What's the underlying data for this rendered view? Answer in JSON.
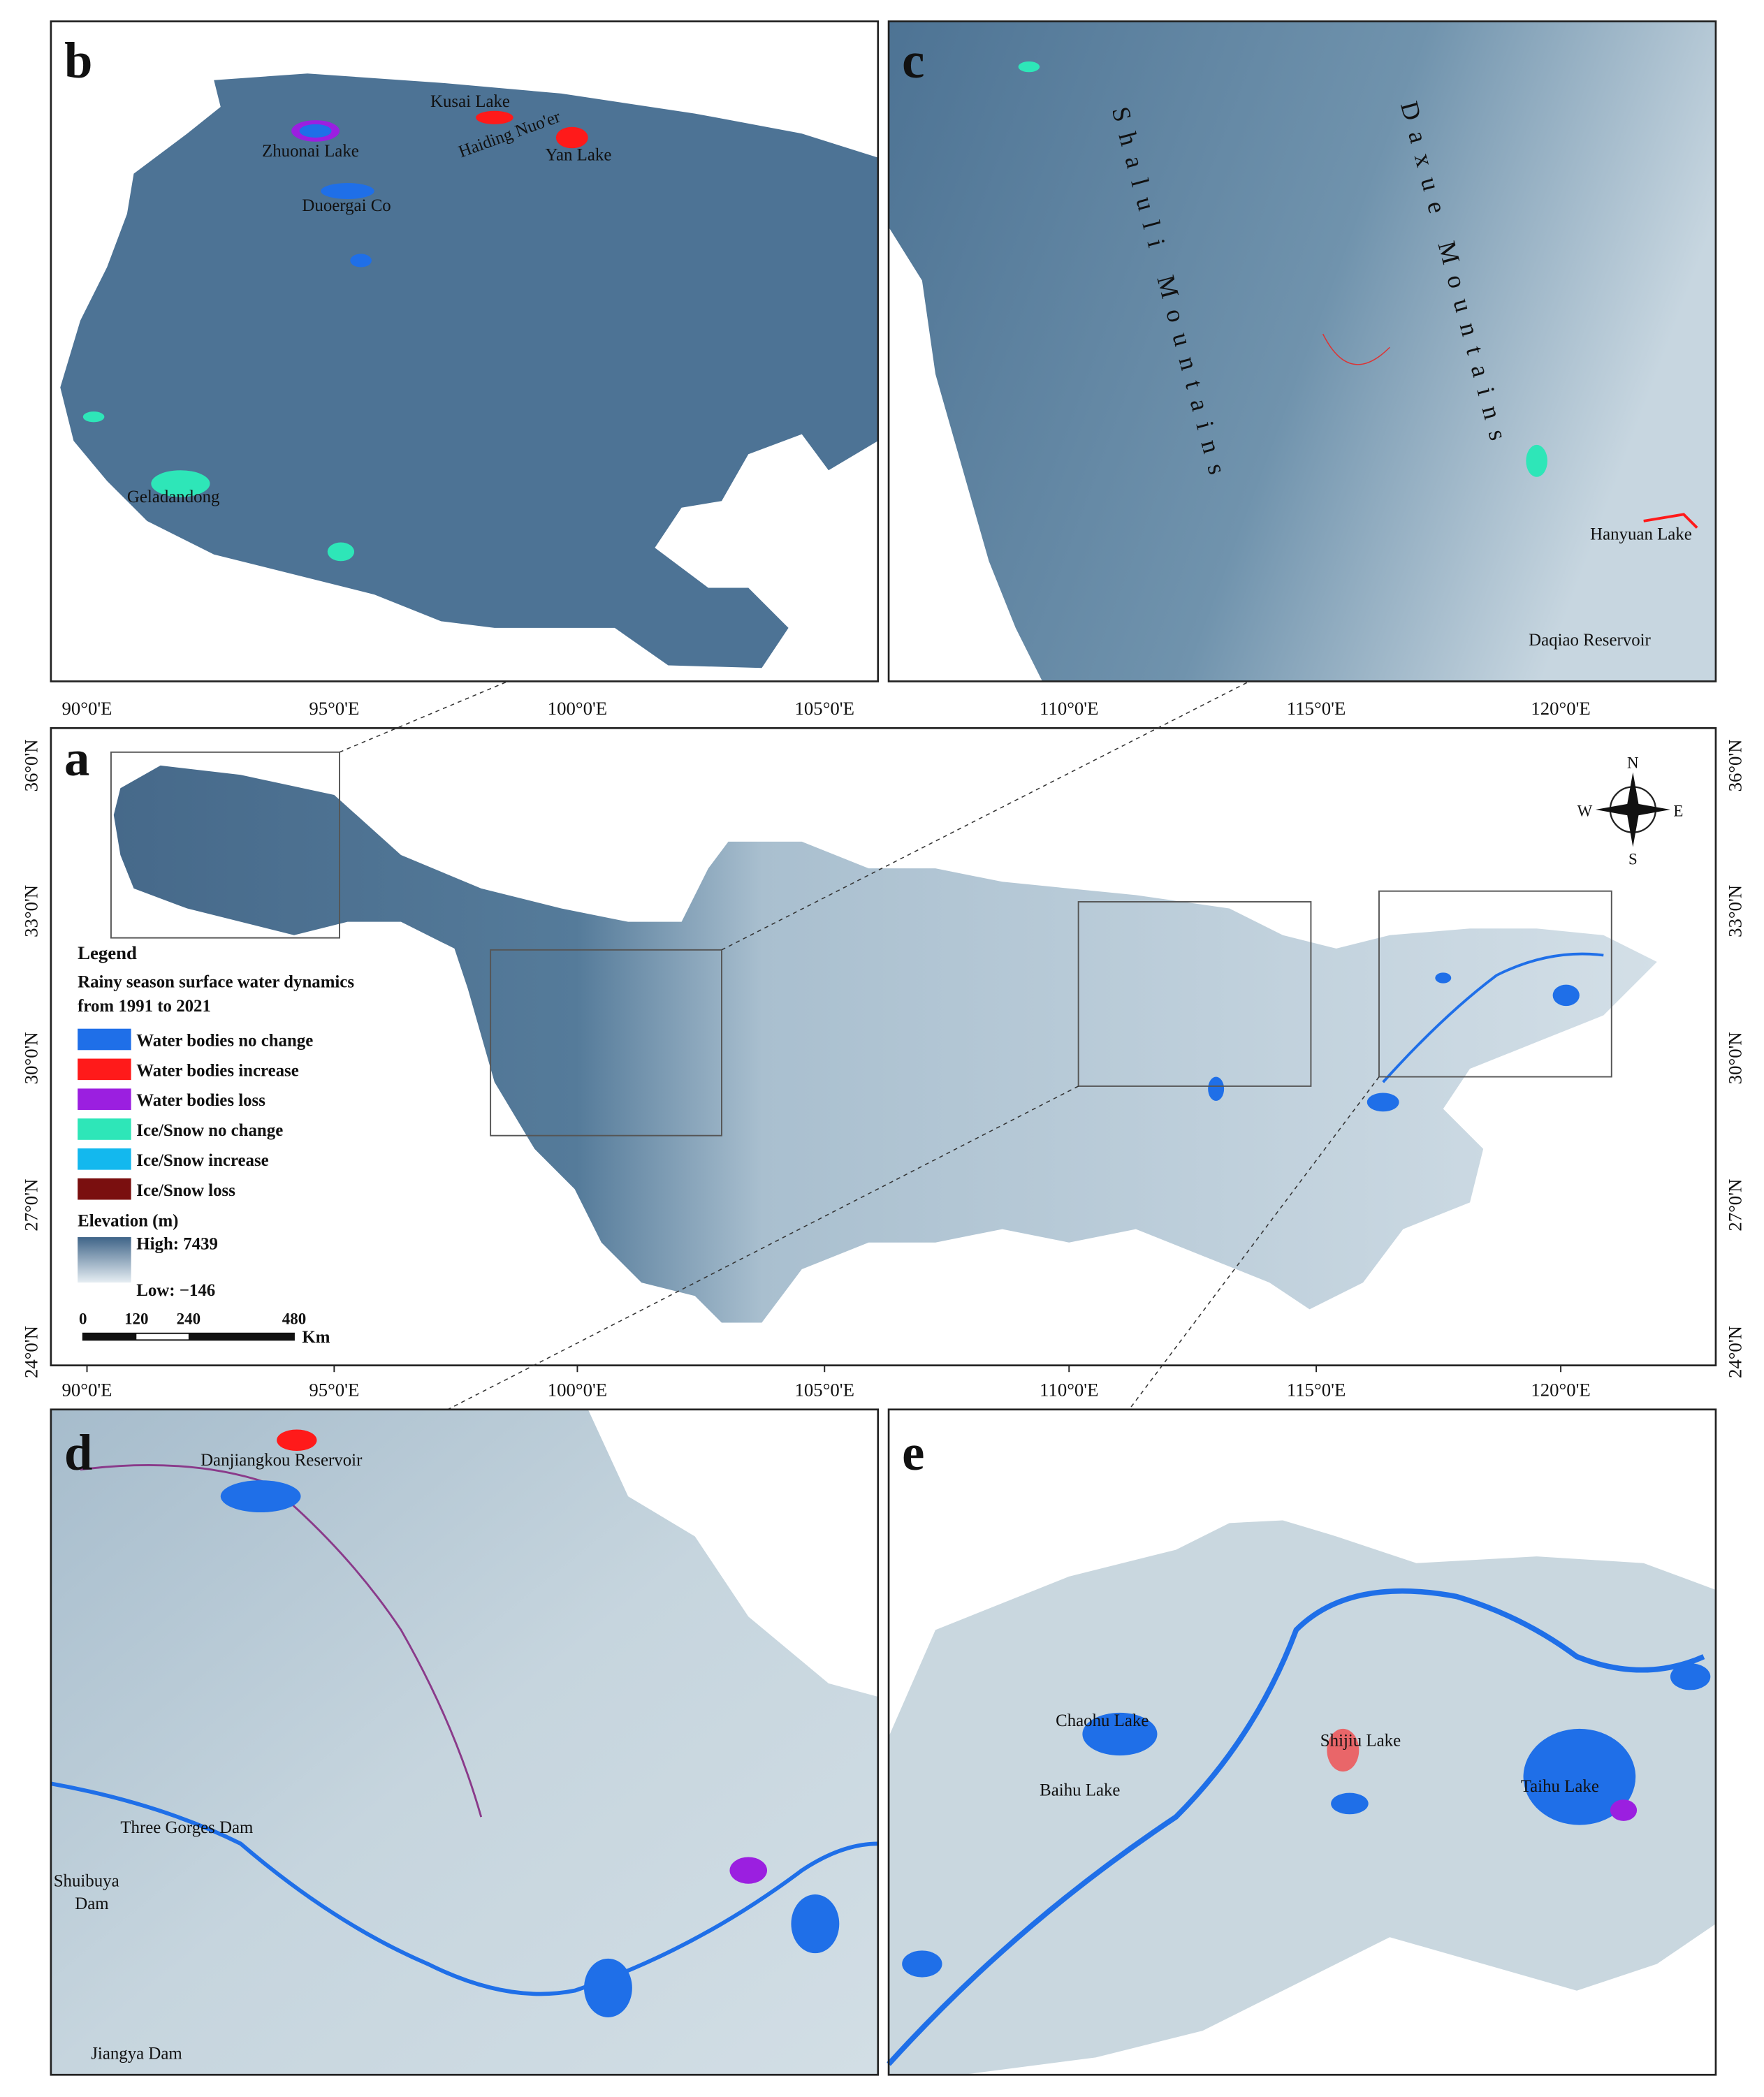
{
  "panel_b": {
    "letter": "b",
    "labels": [
      "Kusai Lake",
      "Haiding Nuo'er",
      "Yan Lake",
      "Zhuonai Lake",
      "Duoergai Co",
      "Geladandong"
    ],
    "lon_ticks": [
      "90°0'E",
      "95°0'E",
      "100°0'E",
      "105°0'E"
    ]
  },
  "panel_c": {
    "letter": "c",
    "labels": [
      "Shaluli Mountains",
      "Daxue Mountains",
      "Hanyuan Lake",
      "Daqiao Reservoir"
    ],
    "lon_ticks": [
      "110°0'E",
      "115°0'E",
      "120°0'E"
    ]
  },
  "panel_a": {
    "letter": "a",
    "lon_ticks": [
      "90°0'E",
      "95°0'E",
      "100°0'E",
      "105°0'E",
      "110°0'E",
      "115°0'E",
      "120°0'E"
    ],
    "lat_ticks": [
      "36°0'N",
      "33°0'N",
      "30°0'N",
      "27°0'N",
      "24°0'N"
    ],
    "compass": [
      "N",
      "S",
      "E",
      "W"
    ],
    "legend": {
      "title": "Legend",
      "subtitle": [
        "Rainy season surface water dynamics",
        "from 1991 to 2021"
      ],
      "items": [
        {
          "label": "Water bodies no change",
          "color": "#1f6fe8"
        },
        {
          "label": "Water bodies increase",
          "color": "#ff1a1a"
        },
        {
          "label": "Water bodies loss",
          "color": "#9b1fe0"
        },
        {
          "label": "Ice/Snow no change",
          "color": "#2ee6b8"
        },
        {
          "label": "Ice/Snow increase",
          "color": "#13b8ee"
        },
        {
          "label": "Ice/Snow loss",
          "color": "#7a0f0f"
        }
      ],
      "elevation": {
        "title": "Elevation (m)",
        "high": "High: 7439",
        "low": "Low: −146"
      },
      "scale_bar": {
        "labels": [
          "0",
          "120",
          "240",
          "480"
        ],
        "unit": "Km"
      }
    }
  },
  "panel_d": {
    "letter": "d",
    "labels": [
      "Danjiangkou Reservoir",
      "Three Gorges Dam",
      "Shuibuya",
      "Dam",
      "Jiangya Dam"
    ]
  },
  "panel_e": {
    "letter": "e",
    "labels": [
      "Chaohu Lake",
      "Baihu Lake",
      "Shijiu Lake",
      "Taihu Lake"
    ]
  }
}
